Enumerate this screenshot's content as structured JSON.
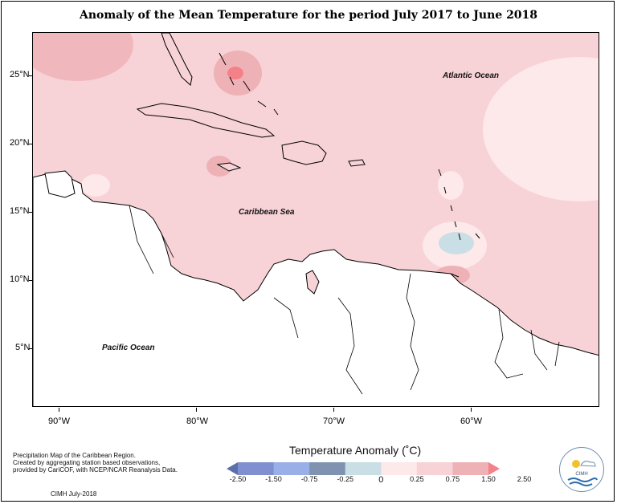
{
  "title": "Anomaly of the Mean Temperature for the period July 2017 to June 2018",
  "lat_labels": [
    "25°N",
    "20°N",
    "15°N",
    "10°N",
    "5°N"
  ],
  "lon_labels": [
    "90°W",
    "80°W",
    "70°W",
    "60°W"
  ],
  "map_labels": {
    "atlantic": "Atlantic Ocean",
    "caribbean": "Caribbean Sea",
    "pacific": "Pacific Ocean"
  },
  "notes": {
    "line1": "Precipitation Map of the Caribbean Region.",
    "line2": "Created by aggregating station based observations,",
    "line3": "provided by CariCOF, with NCEP/NCAR Reanalysis Data.",
    "credit": "CIMH July-2018"
  },
  "legend": {
    "title": "Temperature Anomaly (˚C)",
    "labels": [
      "-2.50",
      "-1.50",
      "-0.75",
      "-0.25",
      "0",
      "0.25",
      "0.75",
      "1.50",
      "2.50"
    ],
    "colors": [
      "#5c6fa8",
      "#7f8fcf",
      "#9aaee8",
      "#7f93b0",
      "#c9dee5",
      "#fde8ea",
      "#f7d2d6",
      "#eeb2b6",
      "#f48088"
    ]
  },
  "logo": {
    "text": "CIMH"
  }
}
